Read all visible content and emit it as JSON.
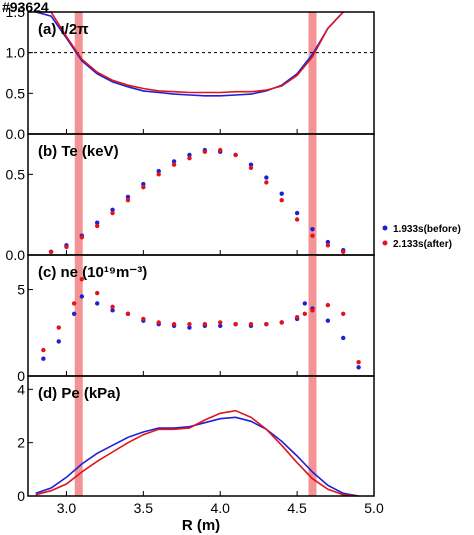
{
  "figure": {
    "shot_label": "#93624"
  },
  "chart_data": [
    {
      "type": "line",
      "panel_label": "(a) ι/2π",
      "ylim": [
        0,
        1.5
      ],
      "yticks": [
        "0.0",
        "0.5",
        "1.0",
        "1.5"
      ],
      "reference_line": 1.0,
      "series": [
        {
          "name": "1.933s(before)",
          "color": "#1f1fd6",
          "x": [
            2.8,
            2.9,
            3.0,
            3.1,
            3.2,
            3.3,
            3.4,
            3.5,
            3.6,
            3.7,
            3.8,
            3.9,
            4.0,
            4.1,
            4.2,
            4.3,
            4.4,
            4.5,
            4.6,
            4.7,
            4.8
          ],
          "y": [
            1.72,
            1.45,
            1.18,
            0.9,
            0.74,
            0.64,
            0.58,
            0.53,
            0.51,
            0.49,
            0.48,
            0.47,
            0.47,
            0.48,
            0.49,
            0.53,
            0.6,
            0.74,
            0.98,
            1.3,
            1.65
          ]
        },
        {
          "name": "2.133s(after)",
          "color": "#e0141c",
          "x": [
            2.8,
            2.9,
            3.0,
            3.1,
            3.2,
            3.3,
            3.4,
            3.5,
            3.6,
            3.7,
            3.8,
            3.9,
            4.0,
            4.1,
            4.2,
            4.3,
            4.4,
            4.5,
            4.6,
            4.7,
            4.8
          ],
          "y": [
            1.78,
            1.5,
            1.2,
            0.92,
            0.76,
            0.66,
            0.6,
            0.56,
            0.53,
            0.52,
            0.51,
            0.51,
            0.51,
            0.52,
            0.52,
            0.54,
            0.59,
            0.72,
            0.95,
            1.3,
            1.7
          ]
        }
      ]
    },
    {
      "type": "scatter",
      "panel_label": "(b) Te (keV)",
      "ylim": [
        0,
        0.75
      ],
      "yticks": [
        "0.0",
        "0.5"
      ],
      "series": [
        {
          "name": "1.933s(before)",
          "color": "#1f1fd6",
          "x": [
            2.9,
            3.0,
            3.1,
            3.2,
            3.3,
            3.4,
            3.5,
            3.6,
            3.7,
            3.8,
            3.9,
            4.0,
            4.1,
            4.2,
            4.3,
            4.4,
            4.5,
            4.6,
            4.7,
            4.8
          ],
          "y": [
            0.02,
            0.06,
            0.12,
            0.2,
            0.28,
            0.36,
            0.44,
            0.52,
            0.58,
            0.62,
            0.65,
            0.64,
            0.62,
            0.56,
            0.48,
            0.38,
            0.26,
            0.16,
            0.08,
            0.03
          ]
        },
        {
          "name": "2.133s(after)",
          "color": "#e0141c",
          "x": [
            2.9,
            3.0,
            3.1,
            3.2,
            3.3,
            3.4,
            3.5,
            3.6,
            3.7,
            3.8,
            3.9,
            4.0,
            4.1,
            4.2,
            4.3,
            4.4,
            4.5,
            4.6,
            4.7,
            4.8
          ],
          "y": [
            0.02,
            0.05,
            0.11,
            0.18,
            0.26,
            0.34,
            0.42,
            0.5,
            0.56,
            0.6,
            0.64,
            0.65,
            0.62,
            0.54,
            0.45,
            0.34,
            0.22,
            0.12,
            0.06,
            0.02
          ]
        }
      ]
    },
    {
      "type": "scatter",
      "panel_label": "(c) ne (10¹⁹m⁻³)",
      "ylim": [
        0,
        7
      ],
      "yticks": [
        "0",
        "5"
      ],
      "series": [
        {
          "name": "1.933s(before)",
          "color": "#1f1fd6",
          "x": [
            2.85,
            2.95,
            3.05,
            3.1,
            3.2,
            3.3,
            3.4,
            3.5,
            3.6,
            3.7,
            3.8,
            3.9,
            4.0,
            4.1,
            4.2,
            4.3,
            4.4,
            4.5,
            4.55,
            4.6,
            4.7,
            4.8,
            4.9
          ],
          "y": [
            1.0,
            2.0,
            3.6,
            4.6,
            4.2,
            3.8,
            3.6,
            3.2,
            3.0,
            2.9,
            2.8,
            2.9,
            2.9,
            3.0,
            2.9,
            3.0,
            3.1,
            3.3,
            4.2,
            3.9,
            3.2,
            2.2,
            0.5
          ]
        },
        {
          "name": "2.133s(after)",
          "color": "#e0141c",
          "x": [
            2.85,
            2.95,
            3.05,
            3.1,
            3.2,
            3.3,
            3.4,
            3.5,
            3.6,
            3.7,
            3.8,
            3.9,
            4.0,
            4.1,
            4.2,
            4.3,
            4.4,
            4.5,
            4.55,
            4.6,
            4.7,
            4.8,
            4.9
          ],
          "y": [
            1.5,
            2.8,
            4.2,
            5.6,
            4.8,
            4.0,
            3.6,
            3.3,
            3.1,
            3.0,
            3.0,
            3.0,
            3.1,
            3.0,
            3.0,
            3.0,
            3.1,
            3.4,
            3.6,
            3.8,
            4.1,
            3.6,
            0.8
          ]
        }
      ]
    },
    {
      "type": "line",
      "panel_label": "(d) Pe (kPa)",
      "ylim": [
        0,
        4.5
      ],
      "yticks": [
        "0",
        "2",
        "4"
      ],
      "xlabel": "R (m)",
      "xlim": [
        2.75,
        5.0
      ],
      "xticks": [
        "3.0",
        "3.5",
        "4.0",
        "4.5",
        "5.0"
      ],
      "series": [
        {
          "name": "1.933s(before)",
          "color": "#1f1fd6",
          "x": [
            2.8,
            2.9,
            3.0,
            3.1,
            3.2,
            3.3,
            3.4,
            3.5,
            3.6,
            3.7,
            3.8,
            3.9,
            4.0,
            4.1,
            4.2,
            4.3,
            4.4,
            4.5,
            4.6,
            4.7,
            4.8,
            4.9
          ],
          "y": [
            0.1,
            0.3,
            0.7,
            1.2,
            1.6,
            1.9,
            2.2,
            2.4,
            2.55,
            2.55,
            2.6,
            2.75,
            2.9,
            2.95,
            2.8,
            2.5,
            2.05,
            1.5,
            0.9,
            0.4,
            0.1,
            0.0
          ]
        },
        {
          "name": "2.133s(after)",
          "color": "#e0141c",
          "x": [
            2.8,
            2.9,
            3.0,
            3.1,
            3.2,
            3.3,
            3.4,
            3.5,
            3.6,
            3.7,
            3.8,
            3.9,
            4.0,
            4.1,
            4.2,
            4.3,
            4.4,
            4.5,
            4.6,
            4.7,
            4.8,
            4.9
          ],
          "y": [
            0.05,
            0.2,
            0.45,
            0.9,
            1.3,
            1.65,
            2.0,
            2.3,
            2.5,
            2.5,
            2.55,
            2.85,
            3.1,
            3.2,
            2.95,
            2.5,
            1.9,
            1.25,
            0.65,
            0.25,
            0.05,
            0.0
          ]
        }
      ]
    }
  ],
  "highlight_bands": {
    "centers": [
      3.08,
      4.6
    ],
    "color": "#f28080"
  },
  "legend": {
    "placement": "right",
    "entries": [
      {
        "label": "1.933s(before)",
        "color": "#1f1fd6"
      },
      {
        "label": "2.133s(after)",
        "color": "#e0141c"
      }
    ]
  }
}
